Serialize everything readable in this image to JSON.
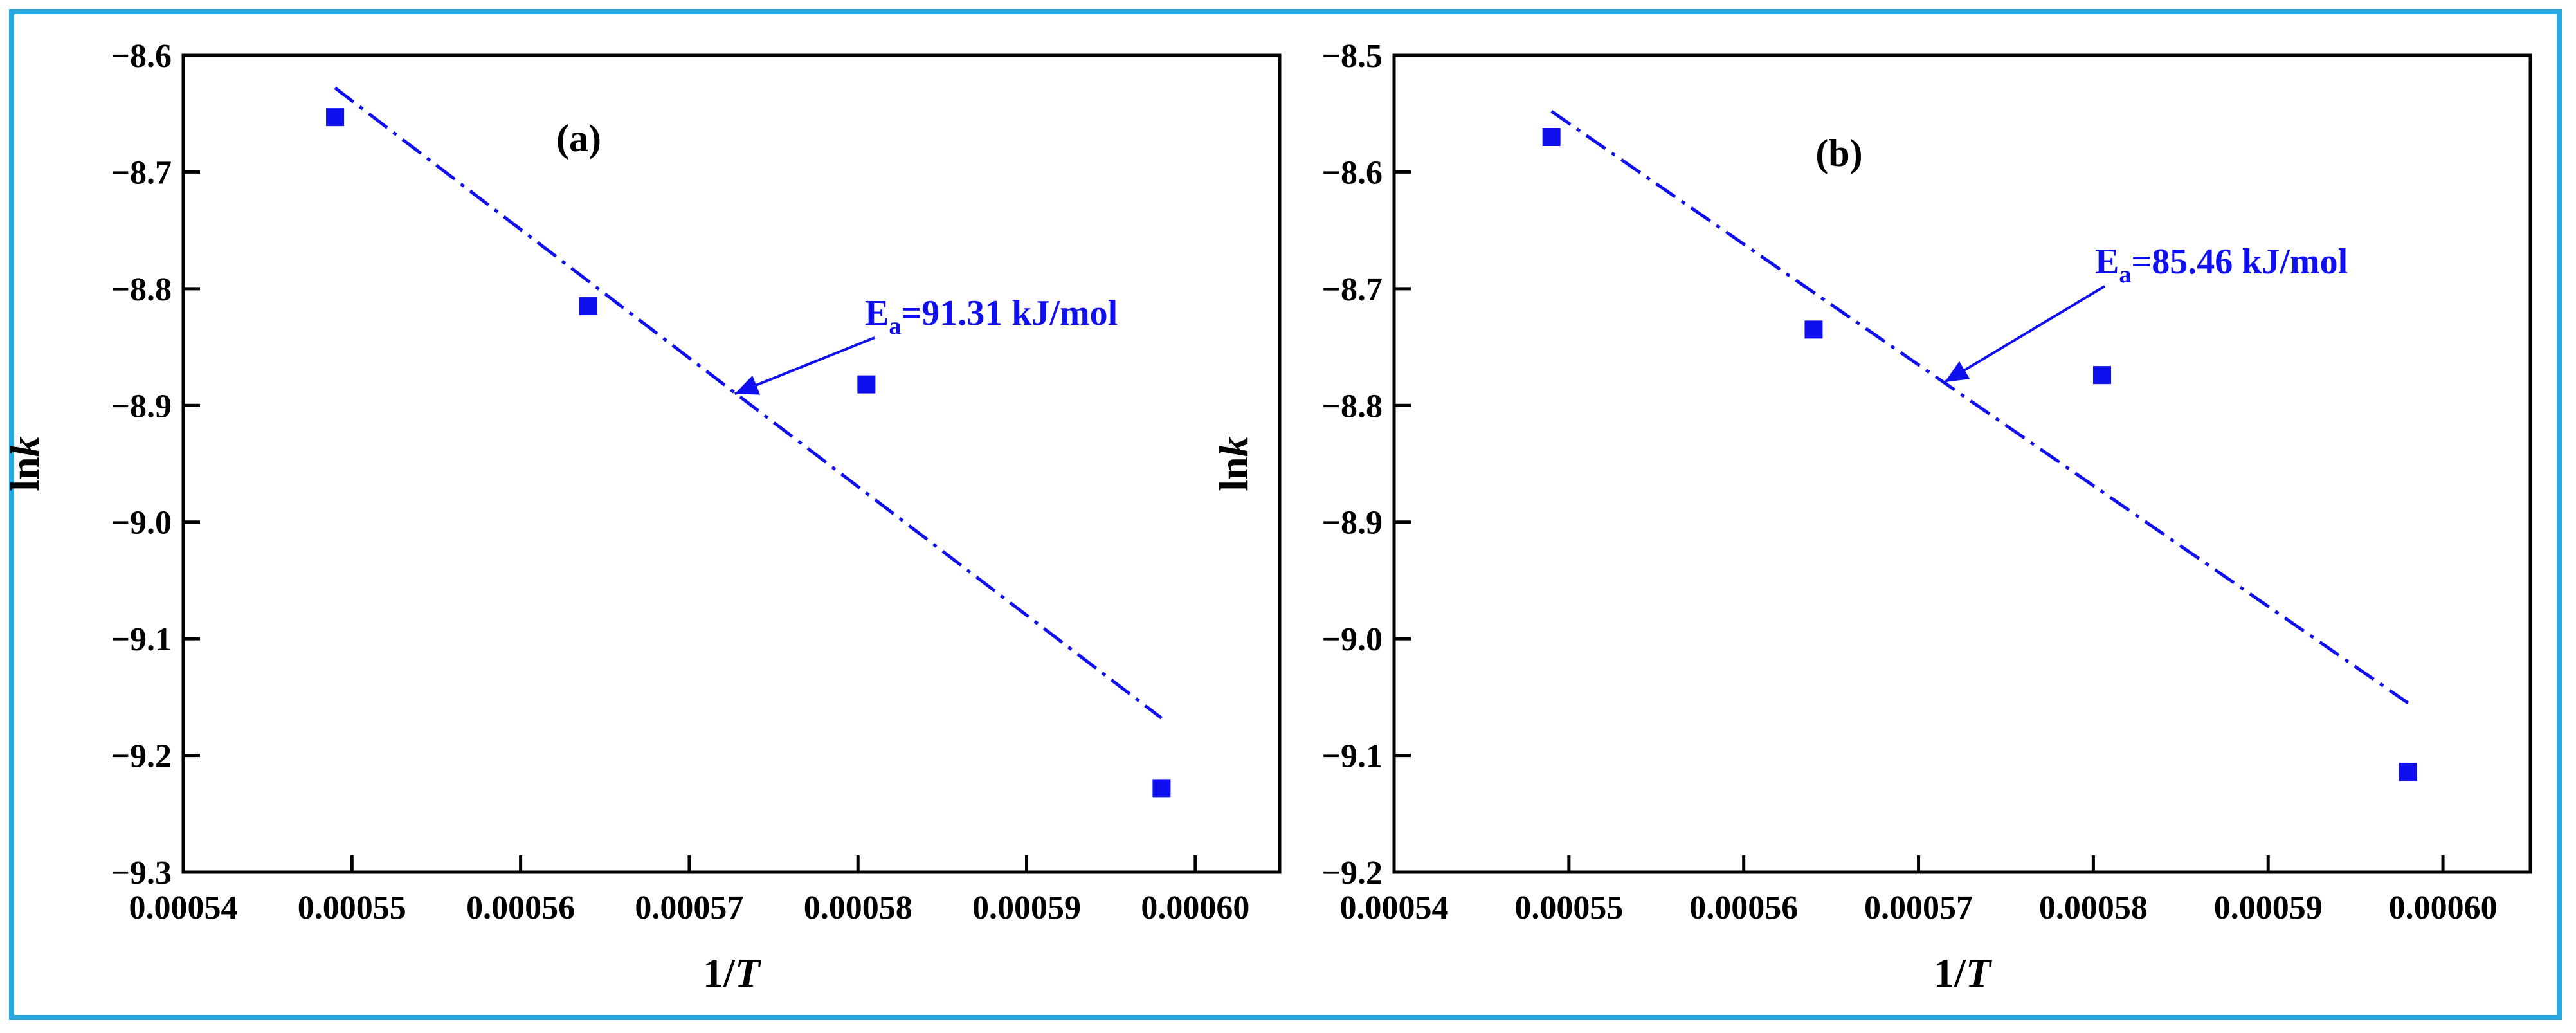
{
  "chart_data": [
    {
      "type": "scatter",
      "panel_label": "(a)",
      "xlabel": "1/T",
      "ylabel": "lnk",
      "xlim": [
        0.00054,
        0.000605
      ],
      "ylim": [
        -9.3,
        -8.6
      ],
      "xticks": [
        0.00054,
        0.00055,
        0.00056,
        0.00057,
        0.00058,
        0.00059,
        0.0006
      ],
      "xtick_labels": [
        "0.00054",
        "0.00055",
        "0.00056",
        "0.00057",
        "0.00058",
        "0.00059",
        "0.00060"
      ],
      "yticks": [
        -8.6,
        -8.7,
        -8.8,
        -8.9,
        -9.0,
        -9.1,
        -9.2,
        -9.3
      ],
      "ytick_labels": [
        "-8.6",
        "-8.7",
        "-8.8",
        "-8.9",
        "-9.0",
        "-9.1",
        "-9.2",
        "-9.3"
      ],
      "series": [
        {
          "name": "data",
          "x": [
            0.000549,
            0.000564,
            0.0005805,
            0.000598
          ],
          "y": [
            -8.653,
            -8.815,
            -8.882,
            -9.228
          ]
        }
      ],
      "fit_line": {
        "x": [
          0.000549,
          0.000598
        ],
        "y": [
          -8.628,
          -9.168
        ]
      },
      "annotation": {
        "main": "E",
        "sub": "a",
        "rest": "=91.31 kJ/mol",
        "arrow_to": [
          0.0005727,
          -8.89
        ]
      },
      "color": "#1010ee"
    },
    {
      "type": "scatter",
      "panel_label": "(b)",
      "xlabel": "1/T",
      "ylabel": "lnk",
      "xlim": [
        0.00054,
        0.000605
      ],
      "ylim": [
        -9.2,
        -8.5
      ],
      "xticks": [
        0.00054,
        0.00055,
        0.00056,
        0.00057,
        0.00058,
        0.00059,
        0.0006
      ],
      "xtick_labels": [
        "0.00054",
        "0.00055",
        "0.00056",
        "0.00057",
        "0.00058",
        "0.00059",
        "0.00060"
      ],
      "yticks": [
        -8.5,
        -8.6,
        -8.7,
        -8.8,
        -8.9,
        -9.0,
        -9.1,
        -9.2
      ],
      "ytick_labels": [
        "-8.5",
        "-8.6",
        "-8.7",
        "-8.8",
        "-8.9",
        "-9.0",
        "-9.1",
        "-9.2"
      ],
      "series": [
        {
          "name": "data",
          "x": [
            0.000549,
            0.000564,
            0.0005805,
            0.000598
          ],
          "y": [
            -8.57,
            -8.735,
            -8.774,
            -9.114
          ]
        }
      ],
      "fit_line": {
        "x": [
          0.000549,
          0.000598
        ],
        "y": [
          -8.548,
          -9.055
        ]
      },
      "annotation": {
        "main": "E",
        "sub": "a",
        "rest": "=85.46 kJ/mol",
        "arrow_to": [
          0.0005715,
          -8.78
        ]
      },
      "color": "#1010ee"
    }
  ]
}
